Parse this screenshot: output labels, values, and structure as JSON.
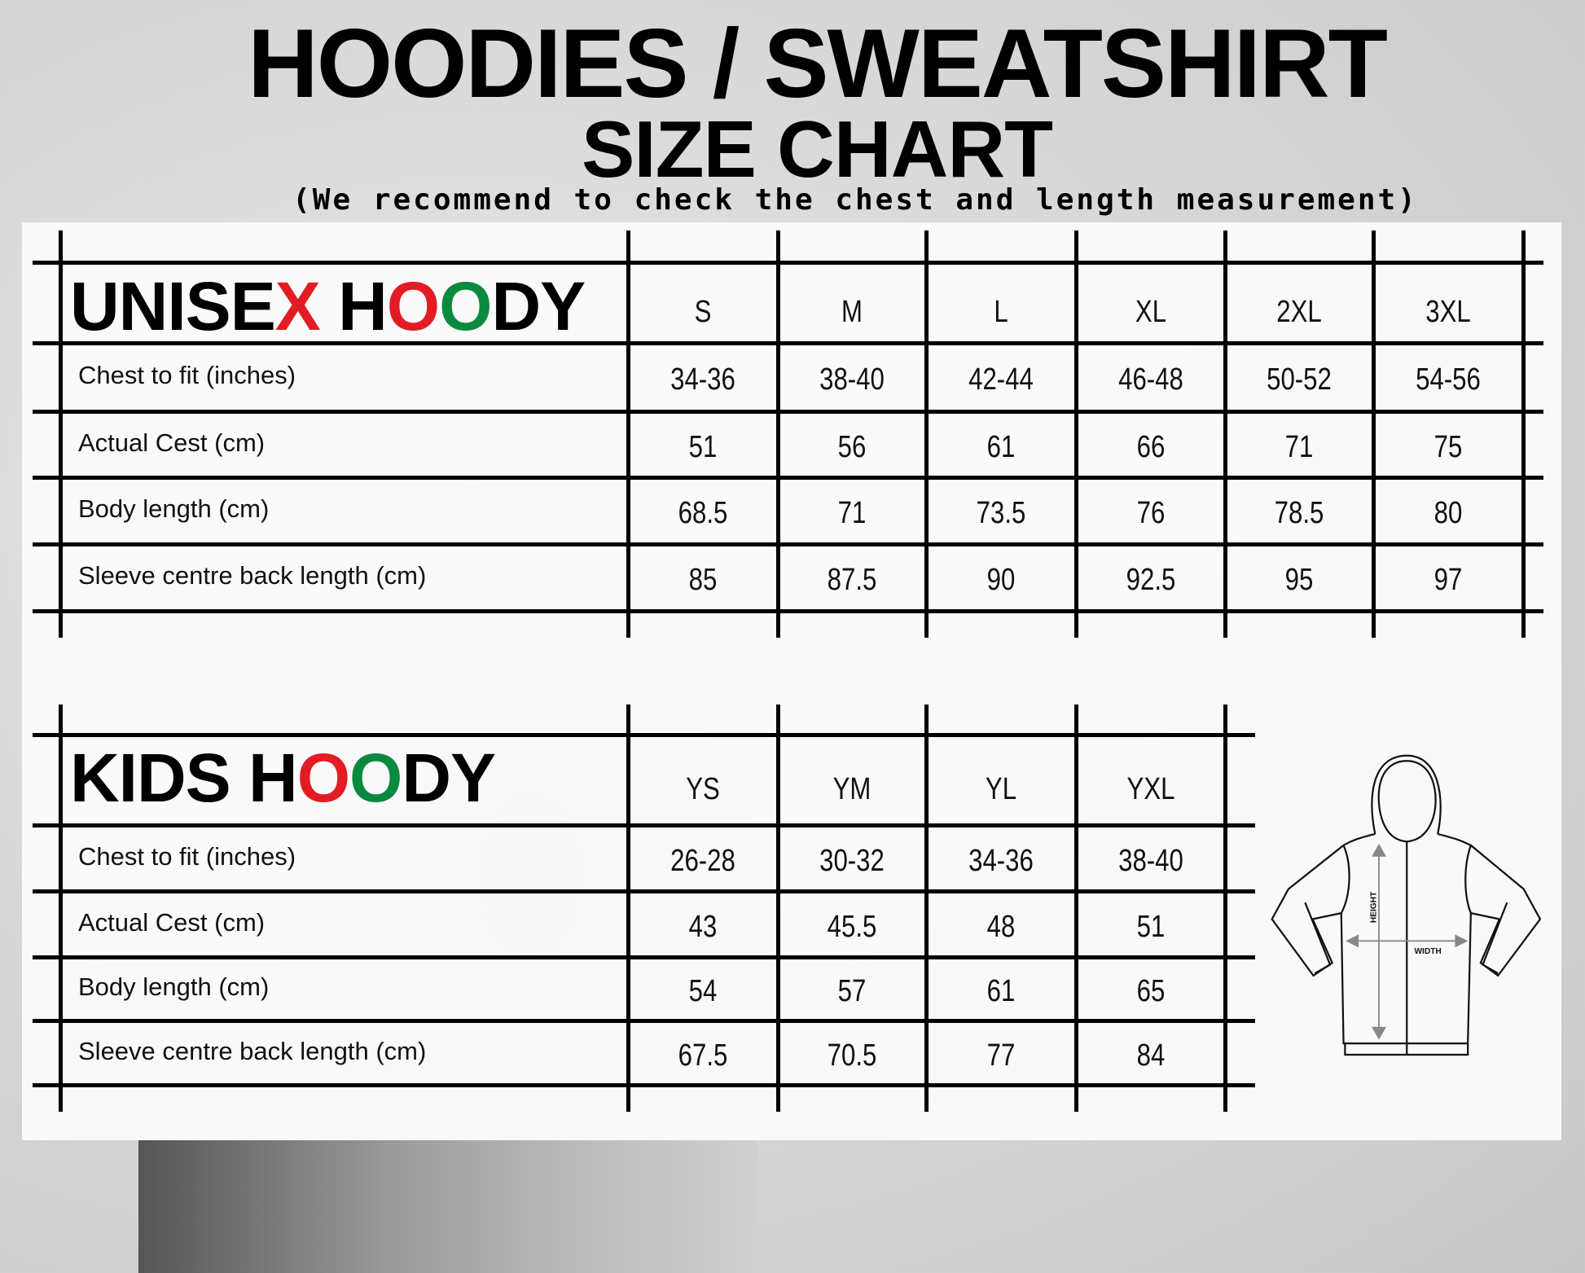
{
  "title": "HOODIES / SWEATSHIRT",
  "subtitle": "SIZE CHART",
  "note": "(We recommend to check the chest and length measurement)",
  "colors": {
    "accent_red": "#e31b23",
    "accent_green": "#0a8a3e"
  },
  "unisex": {
    "heading": [
      "UNISE",
      "X",
      " H",
      "O",
      "O",
      "DY"
    ],
    "sizes": [
      "S",
      "M",
      "L",
      "XL",
      "2XL",
      "3XL"
    ],
    "rows": [
      {
        "label": "Chest to fit (inches)",
        "values": [
          "34-36",
          "38-40",
          "42-44",
          "46-48",
          "50-52",
          "54-56"
        ]
      },
      {
        "label": "Actual Cest (cm)",
        "values": [
          "51",
          "56",
          "61",
          "66",
          "71",
          "75"
        ]
      },
      {
        "label": "Body length (cm)",
        "values": [
          "68.5",
          "71",
          "73.5",
          "76",
          "78.5",
          "80"
        ]
      },
      {
        "label": "Sleeve centre back length (cm)",
        "values": [
          "85",
          "87.5",
          "90",
          "92.5",
          "95",
          "97"
        ]
      }
    ]
  },
  "kids": {
    "heading": [
      "KIDS",
      " H",
      "O",
      "O",
      "DY"
    ],
    "sizes": [
      "YS",
      "YM",
      "YL",
      "YXL"
    ],
    "rows": [
      {
        "label": "Chest to fit (inches)",
        "values": [
          "26-28",
          "30-32",
          "34-36",
          "38-40"
        ]
      },
      {
        "label": "Actual Cest (cm)",
        "values": [
          "43",
          "45.5",
          "48",
          "51"
        ]
      },
      {
        "label": "Body length (cm)",
        "values": [
          "54",
          "57",
          "61",
          "65"
        ]
      },
      {
        "label": "Sleeve centre back length (cm)",
        "values": [
          "67.5",
          "70.5",
          "77",
          "84"
        ]
      }
    ]
  },
  "diagram": {
    "height_label": "HEIGHT",
    "width_label": "WIDTH",
    "icon": "hoodie-outline"
  }
}
